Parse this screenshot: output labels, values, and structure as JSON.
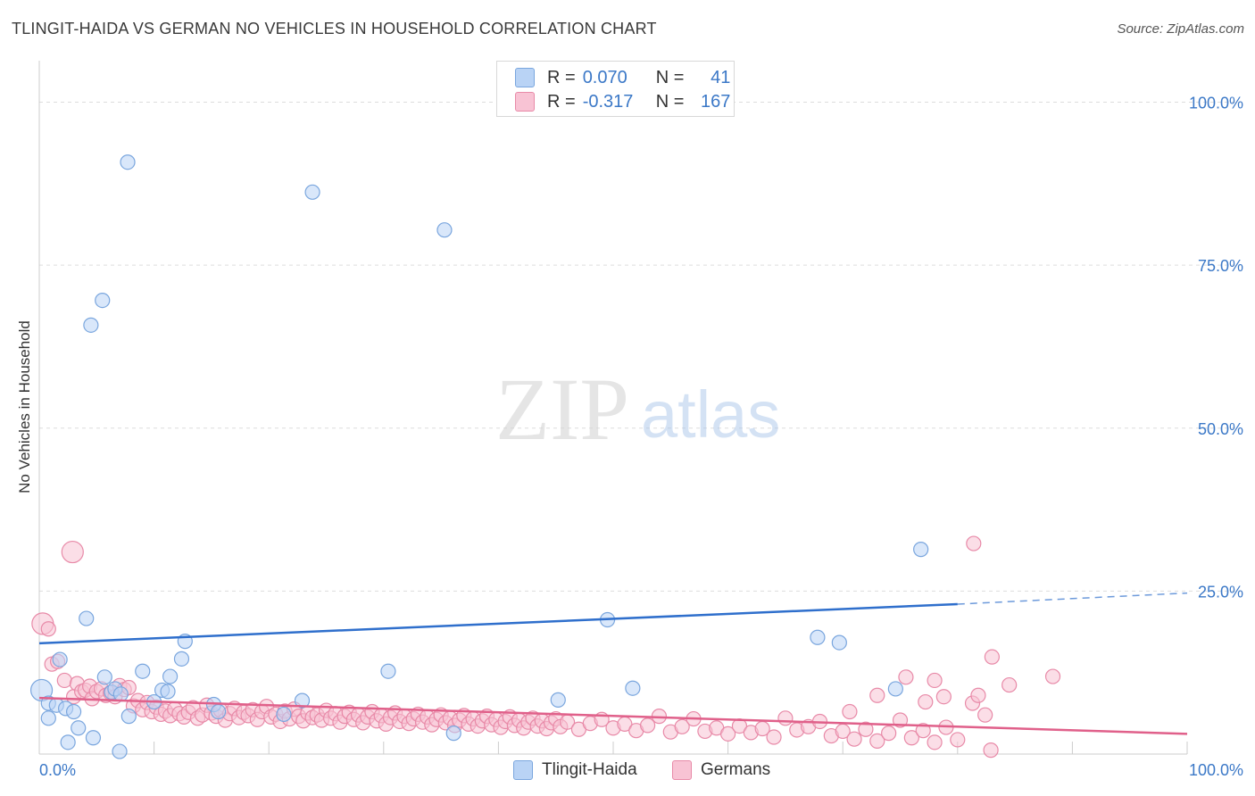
{
  "header": {
    "title": "TLINGIT-HAIDA VS GERMAN NO VEHICLES IN HOUSEHOLD CORRELATION CHART",
    "source": "Source: ZipAtlas.com"
  },
  "watermark": {
    "zip": "ZIP",
    "atlas": "atlas"
  },
  "legend_top": {
    "r_label": "R =",
    "n_label": "N =",
    "rows": [
      {
        "series": "Tlingit-Haida",
        "r": "0.070",
        "n": "41"
      },
      {
        "series": "Germans",
        "r": "-0.317",
        "n": "167"
      }
    ]
  },
  "colors": {
    "blue_fill": "#b9d3f5",
    "blue_stroke": "#7aa6de",
    "blue_line": "#2f6fcc",
    "pink_fill": "#f8c3d4",
    "pink_stroke": "#e88aa8",
    "pink_line": "#e0608a",
    "axis_text": "#3b78c7",
    "grid": "#dddddd"
  },
  "chart_data": {
    "type": "scatter",
    "title": "TLINGIT-HAIDA VS GERMAN NO VEHICLES IN HOUSEHOLD CORRELATION CHART",
    "xlabel": "",
    "ylabel": "No Vehicles in Household",
    "xlim": [
      0,
      100
    ],
    "ylim": [
      0,
      105
    ],
    "x_tick_labels": [
      "0.0%",
      "100.0%"
    ],
    "y_ticks": [
      25,
      50,
      75,
      100
    ],
    "y_tick_labels": [
      "25.0%",
      "50.0%",
      "75.0%",
      "100.0%"
    ],
    "grid": true,
    "legend": "top-center",
    "series": [
      {
        "name": "Tlingit-Haida",
        "points": [
          [
            0.2,
            9.8,
            2
          ],
          [
            0.8,
            7.8,
            1
          ],
          [
            0.8,
            5.5,
            1
          ],
          [
            1.5,
            7.5,
            1
          ],
          [
            1.8,
            14.5,
            1
          ],
          [
            2.3,
            7.0,
            1
          ],
          [
            2.5,
            1.8,
            1
          ],
          [
            3.0,
            6.5,
            1
          ],
          [
            3.4,
            4.0,
            1
          ],
          [
            4.1,
            20.8,
            1
          ],
          [
            4.5,
            65.8,
            1
          ],
          [
            4.7,
            2.5,
            1
          ],
          [
            5.5,
            69.6,
            1
          ],
          [
            5.7,
            11.8,
            1
          ],
          [
            6.3,
            9.5,
            1
          ],
          [
            6.6,
            10.0,
            1
          ],
          [
            7.0,
            0.4,
            1
          ],
          [
            7.1,
            9.2,
            1
          ],
          [
            7.7,
            90.8,
            1
          ],
          [
            7.8,
            5.8,
            1
          ],
          [
            9.0,
            12.7,
            1
          ],
          [
            10.0,
            8.0,
            1
          ],
          [
            10.7,
            9.8,
            1
          ],
          [
            11.2,
            9.6,
            1
          ],
          [
            11.4,
            11.9,
            1
          ],
          [
            12.4,
            14.6,
            1
          ],
          [
            12.7,
            17.3,
            1
          ],
          [
            15.2,
            7.6,
            1
          ],
          [
            15.6,
            6.5,
            1
          ],
          [
            21.3,
            6.1,
            1
          ],
          [
            22.9,
            8.2,
            1
          ],
          [
            23.8,
            86.2,
            1
          ],
          [
            30.4,
            12.7,
            1
          ],
          [
            35.3,
            80.4,
            1
          ],
          [
            36.1,
            3.2,
            1
          ],
          [
            45.2,
            8.3,
            1
          ],
          [
            49.5,
            20.6,
            1
          ],
          [
            51.7,
            10.1,
            1
          ],
          [
            67.8,
            17.9,
            1
          ],
          [
            69.7,
            17.1,
            1
          ],
          [
            74.6,
            10.0,
            1
          ],
          [
            76.8,
            31.4,
            1
          ]
        ],
        "trend": {
          "x0": 0,
          "y0": 17.0,
          "x1": 80,
          "y1": 23.0,
          "dash_x1": 100,
          "dash_y1": 24.7
        }
      },
      {
        "name": "Germans",
        "points": [
          [
            0.3,
            20.0,
            2
          ],
          [
            0.8,
            19.2,
            1
          ],
          [
            1.1,
            13.8,
            1
          ],
          [
            1.6,
            14.2,
            1
          ],
          [
            2.2,
            11.3,
            1
          ],
          [
            2.9,
            31.0,
            2
          ],
          [
            3.0,
            8.8,
            1
          ],
          [
            3.3,
            10.8,
            1
          ],
          [
            3.7,
            9.6,
            1
          ],
          [
            4.0,
            9.8,
            1
          ],
          [
            4.4,
            10.4,
            1
          ],
          [
            4.6,
            8.5,
            1
          ],
          [
            5.0,
            9.6,
            1
          ],
          [
            5.4,
            10.0,
            1
          ],
          [
            5.8,
            9.0,
            1
          ],
          [
            6.2,
            9.4,
            1
          ],
          [
            6.6,
            8.8,
            1
          ],
          [
            7.0,
            10.5,
            1
          ],
          [
            7.4,
            9.9,
            1
          ],
          [
            7.8,
            10.2,
            1
          ],
          [
            8.2,
            7.4,
            1
          ],
          [
            8.6,
            8.2,
            1
          ],
          [
            9.0,
            6.8,
            1
          ],
          [
            9.4,
            7.9,
            1
          ],
          [
            9.8,
            6.5,
            1
          ],
          [
            10.2,
            7.2,
            1
          ],
          [
            10.6,
            6.1,
            1
          ],
          [
            11.0,
            6.6,
            1
          ],
          [
            11.4,
            5.9,
            1
          ],
          [
            11.8,
            6.9,
            1
          ],
          [
            12.2,
            6.2,
            1
          ],
          [
            12.6,
            5.7,
            1
          ],
          [
            13.0,
            6.4,
            1
          ],
          [
            13.4,
            7.1,
            1
          ],
          [
            13.8,
            5.5,
            1
          ],
          [
            14.2,
            6.0,
            1
          ],
          [
            14.6,
            7.5,
            1
          ],
          [
            15.0,
            6.3,
            1
          ],
          [
            15.4,
            5.8,
            1
          ],
          [
            15.8,
            6.7,
            1
          ],
          [
            16.2,
            5.2,
            1
          ],
          [
            16.6,
            6.2,
            1
          ],
          [
            17.0,
            7.0,
            1
          ],
          [
            17.4,
            5.6,
            1
          ],
          [
            17.8,
            6.4,
            1
          ],
          [
            18.2,
            5.9,
            1
          ],
          [
            18.6,
            6.8,
            1
          ],
          [
            19.0,
            5.3,
            1
          ],
          [
            19.4,
            6.5,
            1
          ],
          [
            19.8,
            7.3,
            1
          ],
          [
            20.2,
            5.7,
            1
          ],
          [
            20.6,
            6.1,
            1
          ],
          [
            21.0,
            5.0,
            1
          ],
          [
            21.4,
            6.6,
            1
          ],
          [
            21.8,
            5.4,
            1
          ],
          [
            22.2,
            6.9,
            1
          ],
          [
            22.6,
            5.8,
            1
          ],
          [
            23.0,
            5.1,
            1
          ],
          [
            23.4,
            6.3,
            1
          ],
          [
            23.8,
            5.6,
            1
          ],
          [
            24.2,
            6.0,
            1
          ],
          [
            24.6,
            5.2,
            1
          ],
          [
            25.0,
            6.7,
            1
          ],
          [
            25.4,
            5.5,
            1
          ],
          [
            25.8,
            6.2,
            1
          ],
          [
            26.2,
            4.9,
            1
          ],
          [
            26.6,
            5.8,
            1
          ],
          [
            27.0,
            6.4,
            1
          ],
          [
            27.4,
            5.3,
            1
          ],
          [
            27.8,
            6.0,
            1
          ],
          [
            28.2,
            4.8,
            1
          ],
          [
            28.6,
            5.7,
            1
          ],
          [
            29.0,
            6.5,
            1
          ],
          [
            29.4,
            5.1,
            1
          ],
          [
            29.8,
            5.9,
            1
          ],
          [
            30.2,
            4.6,
            1
          ],
          [
            30.6,
            5.6,
            1
          ],
          [
            31.0,
            6.3,
            1
          ],
          [
            31.4,
            5.0,
            1
          ],
          [
            31.8,
            5.8,
            1
          ],
          [
            32.2,
            4.7,
            1
          ],
          [
            32.6,
            5.4,
            1
          ],
          [
            33.0,
            6.1,
            1
          ],
          [
            33.4,
            4.9,
            1
          ],
          [
            33.8,
            5.7,
            1
          ],
          [
            34.2,
            4.5,
            1
          ],
          [
            34.6,
            5.3,
            1
          ],
          [
            35.0,
            6.0,
            1
          ],
          [
            35.4,
            4.8,
            1
          ],
          [
            35.8,
            5.5,
            1
          ],
          [
            36.2,
            4.4,
            1
          ],
          [
            36.6,
            5.2,
            1
          ],
          [
            37.0,
            5.9,
            1
          ],
          [
            37.4,
            4.6,
            1
          ],
          [
            37.8,
            5.4,
            1
          ],
          [
            38.2,
            4.3,
            1
          ],
          [
            38.6,
            5.1,
            1
          ],
          [
            39.0,
            5.8,
            1
          ],
          [
            39.4,
            4.5,
            1
          ],
          [
            39.8,
            5.3,
            1
          ],
          [
            40.2,
            4.1,
            1
          ],
          [
            40.6,
            5.0,
            1
          ],
          [
            41.0,
            5.7,
            1
          ],
          [
            41.4,
            4.4,
            1
          ],
          [
            41.8,
            5.2,
            1
          ],
          [
            42.2,
            4.0,
            1
          ],
          [
            42.6,
            4.9,
            1
          ],
          [
            43.0,
            5.5,
            1
          ],
          [
            43.4,
            4.3,
            1
          ],
          [
            43.8,
            5.1,
            1
          ],
          [
            44.2,
            3.9,
            1
          ],
          [
            44.6,
            4.8,
            1
          ],
          [
            45.0,
            5.4,
            1
          ],
          [
            45.4,
            4.2,
            1
          ],
          [
            46.0,
            4.9,
            1
          ],
          [
            47.0,
            3.8,
            1
          ],
          [
            48.0,
            4.7,
            1
          ],
          [
            49.0,
            5.3,
            1
          ],
          [
            50.0,
            4.0,
            1
          ],
          [
            51.0,
            4.6,
            1
          ],
          [
            52.0,
            3.6,
            1
          ],
          [
            53.0,
            4.4,
            1
          ],
          [
            54.0,
            5.8,
            1
          ],
          [
            55.0,
            3.4,
            1
          ],
          [
            56.0,
            4.2,
            1
          ],
          [
            57.0,
            5.4,
            1
          ],
          [
            58.0,
            3.5,
            1
          ],
          [
            59.0,
            4.0,
            1
          ],
          [
            60.0,
            3.1,
            1
          ],
          [
            61.0,
            4.3,
            1
          ],
          [
            62.0,
            3.3,
            1
          ],
          [
            63.0,
            3.9,
            1
          ],
          [
            64.0,
            2.6,
            1
          ],
          [
            65.0,
            5.5,
            1
          ],
          [
            66.0,
            3.7,
            1
          ],
          [
            67.0,
            4.2,
            1
          ],
          [
            68.0,
            5.0,
            1
          ],
          [
            69.0,
            2.8,
            1
          ],
          [
            70.0,
            3.5,
            1
          ],
          [
            71.0,
            2.3,
            1
          ],
          [
            72.0,
            3.8,
            1
          ],
          [
            73.0,
            2.0,
            1
          ],
          [
            74.0,
            3.2,
            1
          ],
          [
            75.0,
            5.2,
            1
          ],
          [
            76.0,
            2.5,
            1
          ],
          [
            77.0,
            3.6,
            1
          ],
          [
            78.0,
            1.8,
            1
          ],
          [
            79.0,
            4.1,
            1
          ],
          [
            80.0,
            2.2,
            1
          ],
          [
            70.6,
            6.5,
            1
          ],
          [
            73.0,
            9.0,
            1
          ],
          [
            75.5,
            11.8,
            1
          ],
          [
            77.2,
            8.0,
            1
          ],
          [
            78.0,
            11.3,
            1
          ],
          [
            78.8,
            8.8,
            1
          ],
          [
            81.3,
            7.8,
            1
          ],
          [
            81.8,
            9.0,
            1
          ],
          [
            82.4,
            6.0,
            1
          ],
          [
            83.0,
            14.9,
            1
          ],
          [
            84.5,
            10.6,
            1
          ],
          [
            88.3,
            11.9,
            1
          ],
          [
            81.4,
            32.3,
            1
          ],
          [
            82.9,
            0.6,
            1
          ]
        ],
        "trend": {
          "x0": 0,
          "y0": 8.6,
          "x1": 100,
          "y1": 3.1
        }
      }
    ]
  },
  "legend_bottom": {
    "items": [
      "Tlingit-Haida",
      "Germans"
    ]
  }
}
